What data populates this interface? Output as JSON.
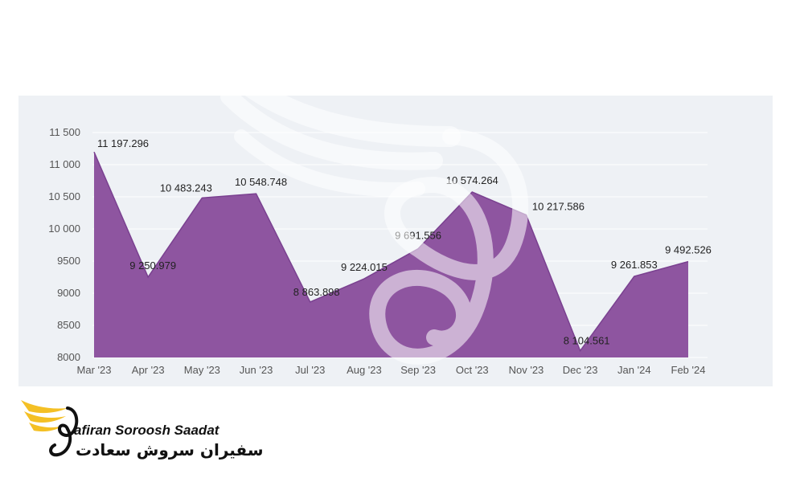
{
  "chart_data": {
    "type": "area",
    "categories": [
      "Mar '23",
      "Apr '23",
      "May '23",
      "Jun '23",
      "Jul '23",
      "Aug '23",
      "Sep '23",
      "Oct '23",
      "Nov '23",
      "Dec '23",
      "Jan '24",
      "Feb '24"
    ],
    "values": [
      11197.296,
      9250.979,
      10483.243,
      10548.748,
      8863.898,
      9224.015,
      9691.556,
      10574.264,
      10217.586,
      8104.561,
      9261.853,
      9492.526
    ],
    "data_labels": [
      "11 197.296",
      "9 250.979",
      "10 483.243",
      "10 548.748",
      "8 863.898",
      "9 224.015",
      "9 691.556",
      "10 574.264",
      "10 217.586",
      "8 104.561",
      "9 261.853",
      "9 492.526"
    ],
    "yticks": [
      8000,
      8500,
      9000,
      9500,
      10000,
      10500,
      11000,
      11500
    ],
    "ytick_labels": [
      "8000",
      "8500",
      "9000",
      "9500",
      "10 000",
      "10 500",
      "11 000",
      "11 500"
    ],
    "ylim": [
      8000,
      11500
    ],
    "title": "",
    "xlabel": "",
    "ylabel": "",
    "grid": true,
    "colors": {
      "area": "#8e55a0",
      "background": "#eef1f5",
      "grid": "#ffffff"
    }
  },
  "logo": {
    "text_en": "afiran Soroosh Saadat",
    "text_fa": "سفیران سروش سعادت",
    "colors": {
      "wing": "#f4c025",
      "text": "#111111"
    }
  }
}
